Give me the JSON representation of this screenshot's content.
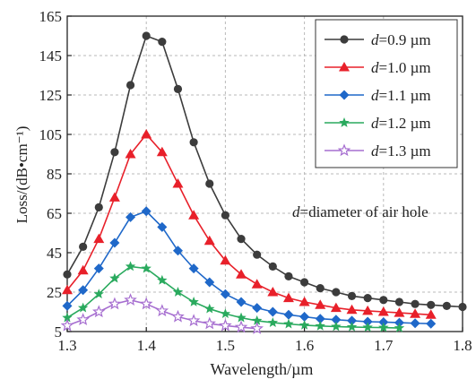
{
  "chart_data": {
    "type": "line",
    "title": "",
    "xlabel": "Wavelength/µm",
    "ylabel": "Loss/(dB•cm⁻¹)",
    "xlim": [
      1.3,
      1.8
    ],
    "ylim": [
      5,
      165
    ],
    "xticks": [
      "1.3",
      "1.4",
      "1.5",
      "1.6",
      "1.7",
      "1.8"
    ],
    "yticks": [
      "5",
      "25",
      "45",
      "65",
      "85",
      "105",
      "125",
      "145",
      "165"
    ],
    "grid": true,
    "legend_position": "top-right",
    "annotation_italic": "d",
    "annotation_rest": "=diameter of air hole",
    "series": [
      {
        "name_italic": "d",
        "name_rest": "=0.9 µm",
        "color": "#3c3c3c",
        "marker": "circle",
        "x": [
          1.3,
          1.32,
          1.34,
          1.36,
          1.38,
          1.4,
          1.42,
          1.44,
          1.46,
          1.48,
          1.5,
          1.52,
          1.54,
          1.56,
          1.58,
          1.6,
          1.62,
          1.64,
          1.66,
          1.68,
          1.7,
          1.72,
          1.74,
          1.76,
          1.78,
          1.8
        ],
        "y": [
          34,
          48,
          68,
          96,
          130,
          155,
          152,
          128,
          101,
          80,
          64,
          52,
          44,
          38,
          33,
          30,
          27,
          25,
          23,
          22,
          21,
          20,
          19,
          18.5,
          18,
          17.5
        ]
      },
      {
        "name_italic": "d",
        "name_rest": "=1.0 µm",
        "color": "#e8202a",
        "marker": "triangle",
        "x": [
          1.3,
          1.32,
          1.34,
          1.36,
          1.38,
          1.4,
          1.42,
          1.44,
          1.46,
          1.48,
          1.5,
          1.52,
          1.54,
          1.56,
          1.58,
          1.6,
          1.62,
          1.64,
          1.66,
          1.68,
          1.7,
          1.72,
          1.74,
          1.76
        ],
        "y": [
          26,
          36,
          52,
          73,
          95,
          105,
          96,
          80,
          64,
          51,
          41,
          34,
          29,
          25,
          22,
          20,
          18.5,
          17,
          16,
          15.5,
          15,
          14.5,
          14,
          13.5
        ]
      },
      {
        "name_italic": "d",
        "name_rest": "=1.1 µm",
        "color": "#1f68c9",
        "marker": "diamond",
        "x": [
          1.3,
          1.32,
          1.34,
          1.36,
          1.38,
          1.4,
          1.42,
          1.44,
          1.46,
          1.48,
          1.5,
          1.52,
          1.54,
          1.56,
          1.58,
          1.6,
          1.62,
          1.64,
          1.66,
          1.68,
          1.7,
          1.72,
          1.74,
          1.76
        ],
        "y": [
          18,
          26,
          37,
          50,
          63,
          66,
          58,
          46,
          37,
          30,
          24,
          20,
          17,
          15,
          13.5,
          12.5,
          11.5,
          11,
          10.5,
          10,
          9.8,
          9.5,
          9.2,
          9
        ]
      },
      {
        "name_italic": "d",
        "name_rest": "=1.2 µm",
        "color": "#2aaa5e",
        "marker": "star",
        "x": [
          1.3,
          1.32,
          1.34,
          1.36,
          1.38,
          1.4,
          1.42,
          1.44,
          1.46,
          1.48,
          1.5,
          1.52,
          1.54,
          1.56,
          1.58,
          1.6,
          1.62,
          1.64,
          1.66,
          1.68,
          1.7,
          1.72
        ],
        "y": [
          12,
          17,
          24,
          32,
          38,
          37,
          31,
          25,
          20,
          16.5,
          14,
          12,
          10.5,
          9.5,
          8.8,
          8.2,
          7.8,
          7.5,
          7.3,
          7.1,
          7,
          6.8
        ]
      },
      {
        "name_italic": "d",
        "name_rest": "=1.3 µm",
        "color": "#a66ed0",
        "marker": "star-open",
        "x": [
          1.3,
          1.32,
          1.34,
          1.36,
          1.38,
          1.4,
          1.42,
          1.44,
          1.46,
          1.48,
          1.5,
          1.52,
          1.54
        ],
        "y": [
          8,
          11,
          15,
          19,
          21,
          19,
          15.5,
          12.5,
          10.5,
          9,
          8,
          7.2,
          6.5
        ]
      }
    ]
  }
}
